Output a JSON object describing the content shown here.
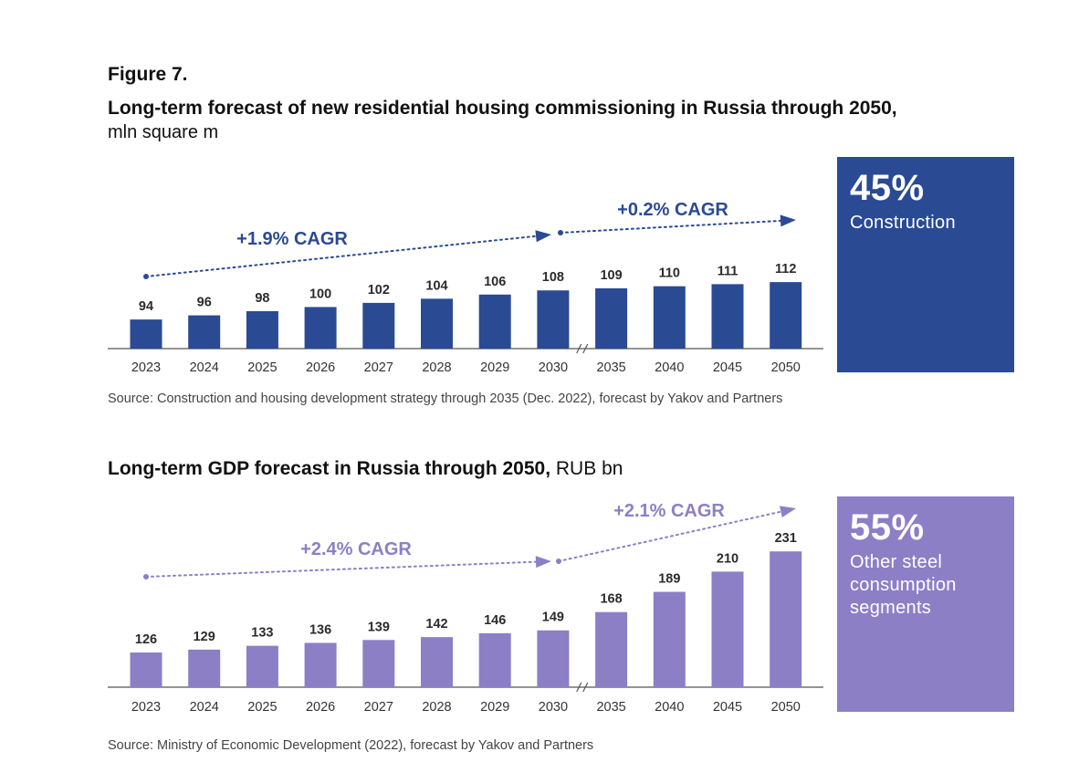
{
  "figure_label": "Figure 7.",
  "chart_data": [
    {
      "type": "bar",
      "title": "Long-term forecast of new residential housing commissioning in Russia through 2050,",
      "unit": "mln square m",
      "categories": [
        "2023",
        "2024",
        "2025",
        "2026",
        "2027",
        "2028",
        "2029",
        "2030",
        "2035",
        "2040",
        "2045",
        "2050"
      ],
      "values": [
        94,
        96,
        98,
        100,
        102,
        104,
        106,
        108,
        109,
        110,
        111,
        112
      ],
      "ylim": [
        80,
        116
      ],
      "color": "#2a4a94",
      "cagr": [
        {
          "label": "+1.9% CAGR",
          "from": "2023",
          "to": "2030"
        },
        {
          "label": "+0.2% CAGR",
          "from": "2030",
          "to": "2050"
        }
      ],
      "axis_break_after": "2030",
      "source": "Source: Construction and housing development strategy through 2035 (Dec. 2022), forecast by Yakov and Partners",
      "callout": {
        "percent": "45%",
        "label": "Construction",
        "color": "#2a4a94"
      }
    },
    {
      "type": "bar",
      "title": "Long-term GDP forecast in Russia through 2050,",
      "unit": "RUB bn",
      "categories": [
        "2023",
        "2024",
        "2025",
        "2026",
        "2027",
        "2028",
        "2029",
        "2030",
        "2035",
        "2040",
        "2045",
        "2050"
      ],
      "values": [
        126,
        129,
        133,
        136,
        139,
        142,
        146,
        149,
        168,
        189,
        210,
        231
      ],
      "ylim": [
        90,
        235
      ],
      "color": "#8c7fc6",
      "cagr": [
        {
          "label": "+2.4% CAGR",
          "from": "2023",
          "to": "2030"
        },
        {
          "label": "+2.1% CAGR",
          "from": "2030",
          "to": "2050"
        }
      ],
      "axis_break_after": "2030",
      "source": "Source: Ministry of Economic Development (2022), forecast by Yakov and Partners",
      "callout": {
        "percent": "55%",
        "label": "Other steel consumption segments",
        "color": "#8c7fc6"
      }
    }
  ]
}
